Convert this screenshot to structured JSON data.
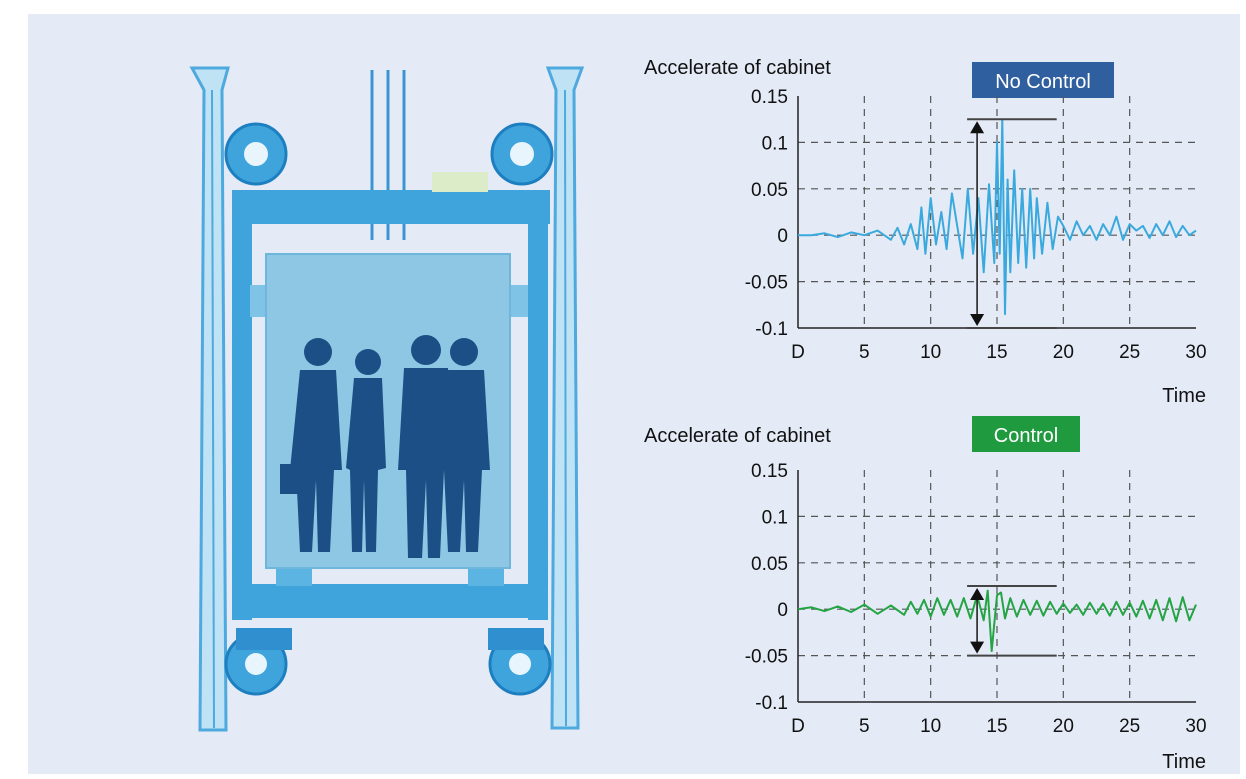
{
  "colors": {
    "background": "#e4ebf6",
    "frame": "#3fa3dc",
    "frame_dark": "#1e7fc0",
    "cabin": "#8ec7e3",
    "people": "#1b4f86",
    "no_control_badge": "#2f5f9f",
    "control_badge": "#1f9a3f",
    "no_control_line": "#3aa9dd",
    "control_line": "#24a544"
  },
  "icons": [
    "elevator-illustration",
    "pulley-icon",
    "passenger-silhouettes"
  ],
  "charts": [
    {
      "ylabel": "Accelerate of cabinet",
      "badge": "No Control",
      "xlabel": "Time",
      "x_ticks": [
        "D",
        "5",
        "10",
        "15",
        "20",
        "25",
        "30"
      ],
      "y_ticks": [
        "0.15",
        "0.1",
        "0.05",
        "0",
        "-0.05",
        "-0.1"
      ]
    },
    {
      "ylabel": "Accelerate of cabinet",
      "badge": "Control",
      "xlabel": "Time",
      "x_ticks": [
        "D",
        "5",
        "10",
        "15",
        "20",
        "25",
        "30"
      ],
      "y_ticks": [
        "0.15",
        "0.1",
        "0.05",
        "0",
        "-0.05",
        "-0.1"
      ]
    }
  ],
  "chart_data": [
    {
      "type": "line",
      "title": "No Control",
      "xlabel": "Time",
      "ylabel": "Accelerate of cabinet",
      "xlim": [
        0,
        30
      ],
      "ylim": [
        -0.1,
        0.15
      ],
      "grid": true,
      "annotation": {
        "type": "range-arrow",
        "x": 13.5,
        "y_range": [
          -0.1,
          0.125
        ]
      },
      "series": [
        {
          "x": [
            0,
            1,
            2,
            3,
            4,
            5,
            6,
            7,
            7.5,
            8,
            8.5,
            9,
            9.3,
            9.6,
            10,
            10.4,
            10.8,
            11.2,
            11.6,
            12,
            12.4,
            12.8,
            13.2,
            13.6,
            14,
            14.4,
            14.8,
            15,
            15.2,
            15.4,
            15.6,
            15.8,
            16,
            16.3,
            16.6,
            16.9,
            17.2,
            17.5,
            17.8,
            18,
            18.4,
            18.8,
            19.2,
            19.6,
            20,
            20.5,
            21,
            21.5,
            22,
            22.5,
            23,
            23.5,
            24,
            24.5,
            25,
            25.5,
            26,
            26.5,
            27,
            27.5,
            28,
            28.5,
            29,
            29.5,
            30
          ],
          "values": [
            0,
            0,
            0.002,
            -0.002,
            0.003,
            0,
            0.005,
            -0.005,
            0.008,
            -0.01,
            0.012,
            -0.015,
            0.03,
            -0.02,
            0.04,
            -0.01,
            0.025,
            -0.015,
            0.045,
            0.01,
            -0.025,
            0.05,
            -0.02,
            0.04,
            -0.04,
            0.055,
            -0.03,
            0.1,
            -0.02,
            0.125,
            -0.085,
            0.06,
            -0.04,
            0.07,
            -0.03,
            0.05,
            -0.035,
            0.05,
            -0.025,
            0.04,
            -0.02,
            0.035,
            -0.015,
            0.02,
            0.01,
            -0.005,
            0.015,
            0,
            0.01,
            -0.005,
            0.012,
            0,
            0.02,
            -0.005,
            0.012,
            0.005,
            0.01,
            -0.003,
            0.012,
            0,
            0.015,
            -0.002,
            0.01,
            0,
            0.005
          ]
        }
      ]
    },
    {
      "type": "line",
      "title": "Control",
      "xlabel": "Time",
      "ylabel": "Accelerate of cabinet",
      "xlim": [
        0,
        30
      ],
      "ylim": [
        -0.1,
        0.15
      ],
      "grid": true,
      "annotation": {
        "type": "range-arrow",
        "x": 13.5,
        "y_range": [
          -0.05,
          0.025
        ]
      },
      "series": [
        {
          "x": [
            0,
            1,
            2,
            3,
            4,
            5,
            6,
            7,
            8,
            8.5,
            9,
            9.5,
            10,
            10.5,
            11,
            11.5,
            12,
            12.5,
            13,
            13.5,
            14,
            14.3,
            14.6,
            15,
            15.3,
            15.6,
            16,
            16.5,
            17,
            17.5,
            18,
            18.5,
            19,
            19.5,
            20,
            20.5,
            21,
            21.5,
            22,
            22.5,
            23,
            23.5,
            24,
            24.5,
            25,
            25.5,
            26,
            26.5,
            27,
            27.5,
            28,
            28.5,
            29,
            29.5,
            30
          ],
          "values": [
            0,
            0.002,
            -0.002,
            0.003,
            -0.003,
            0.005,
            -0.005,
            0.004,
            -0.006,
            0.008,
            -0.005,
            0.01,
            -0.008,
            0.012,
            -0.006,
            0.01,
            -0.008,
            0.012,
            -0.01,
            0.015,
            -0.012,
            0.02,
            -0.045,
            0.015,
            0.018,
            -0.01,
            0.012,
            -0.008,
            0.01,
            -0.006,
            0.009,
            -0.007,
            0.008,
            -0.005,
            0.006,
            -0.004,
            0.005,
            -0.006,
            0.007,
            -0.005,
            0.006,
            -0.007,
            0.008,
            -0.006,
            0.007,
            -0.008,
            0.009,
            -0.01,
            0.01,
            -0.012,
            0.012,
            -0.013,
            0.013,
            -0.012,
            0.005
          ]
        }
      ]
    }
  ]
}
